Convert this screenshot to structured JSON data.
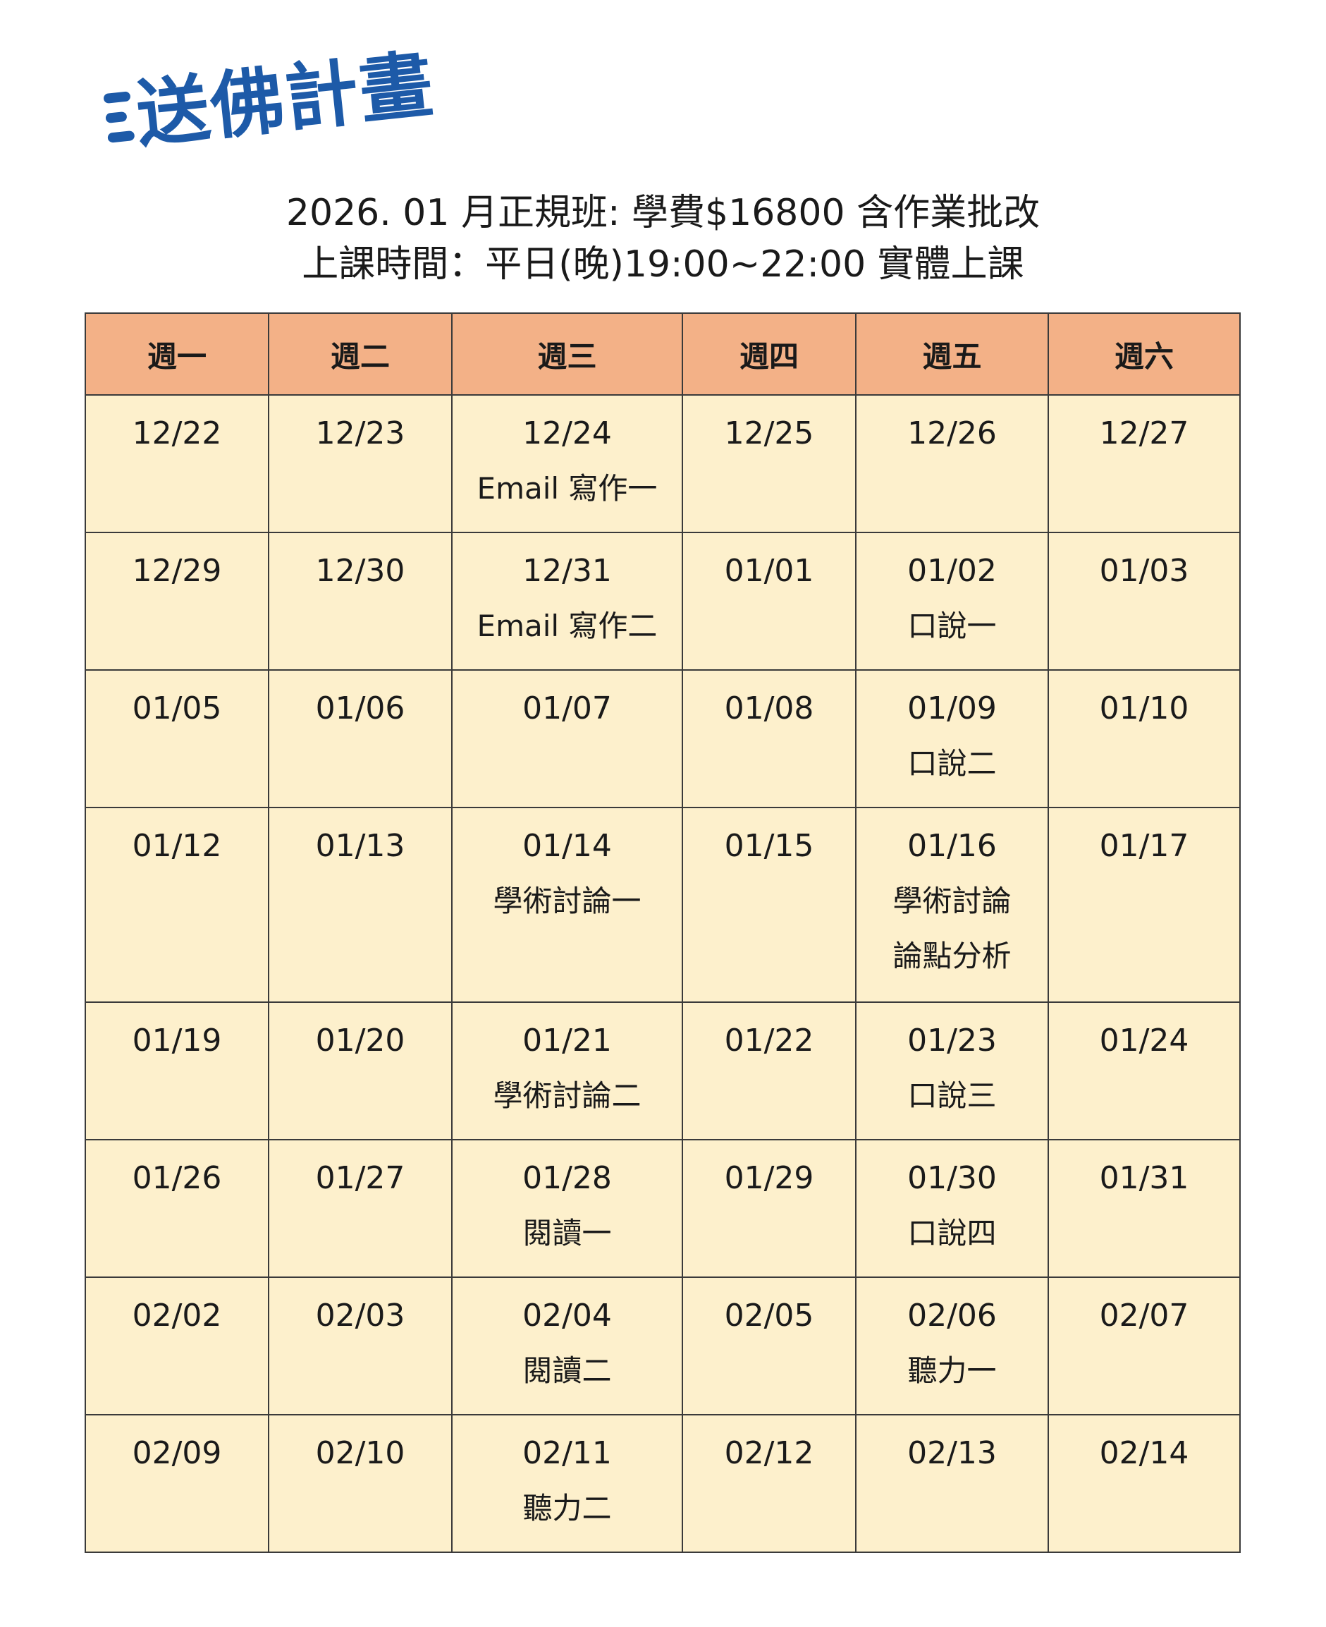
{
  "logo": {
    "text": "送佛計畫",
    "color": "#1d5aa8"
  },
  "header": {
    "line1": "2026. 01 月正規班: 學費$16800 含作業批改",
    "line2": "上課時間：平日(晚)19:00~22:00 實體上課"
  },
  "colors": {
    "header_bg": "#f3b187",
    "cell_bg": "#fdf0cc",
    "border": "#3a3a3a"
  },
  "schedule": {
    "days": [
      "週一",
      "週二",
      "週三",
      "週四",
      "週五",
      "週六"
    ],
    "weeks": [
      [
        {
          "date": "12/22",
          "events": []
        },
        {
          "date": "12/23",
          "events": []
        },
        {
          "date": "12/24",
          "events": [
            "Email 寫作一"
          ]
        },
        {
          "date": "12/25",
          "events": []
        },
        {
          "date": "12/26",
          "events": []
        },
        {
          "date": "12/27",
          "events": []
        }
      ],
      [
        {
          "date": "12/29",
          "events": []
        },
        {
          "date": "12/30",
          "events": []
        },
        {
          "date": "12/31",
          "events": [
            "Email 寫作二"
          ]
        },
        {
          "date": "01/01",
          "events": []
        },
        {
          "date": "01/02",
          "events": [
            "口說一"
          ]
        },
        {
          "date": "01/03",
          "events": []
        }
      ],
      [
        {
          "date": "01/05",
          "events": []
        },
        {
          "date": "01/06",
          "events": []
        },
        {
          "date": "01/07",
          "events": []
        },
        {
          "date": "01/08",
          "events": []
        },
        {
          "date": "01/09",
          "events": [
            "口說二"
          ]
        },
        {
          "date": "01/10",
          "events": []
        }
      ],
      [
        {
          "date": "01/12",
          "events": []
        },
        {
          "date": "01/13",
          "events": []
        },
        {
          "date": "01/14",
          "events": [
            "學術討論一"
          ]
        },
        {
          "date": "01/15",
          "events": []
        },
        {
          "date": "01/16",
          "events": [
            "學術討論",
            "論點分析"
          ]
        },
        {
          "date": "01/17",
          "events": []
        }
      ],
      [
        {
          "date": "01/19",
          "events": []
        },
        {
          "date": "01/20",
          "events": []
        },
        {
          "date": "01/21",
          "events": [
            "學術討論二"
          ]
        },
        {
          "date": "01/22",
          "events": []
        },
        {
          "date": "01/23",
          "events": [
            "口說三"
          ]
        },
        {
          "date": "01/24",
          "events": []
        }
      ],
      [
        {
          "date": "01/26",
          "events": []
        },
        {
          "date": "01/27",
          "events": []
        },
        {
          "date": "01/28",
          "events": [
            "閱讀一"
          ]
        },
        {
          "date": "01/29",
          "events": []
        },
        {
          "date": "01/30",
          "events": [
            "口說四"
          ]
        },
        {
          "date": "01/31",
          "events": []
        }
      ],
      [
        {
          "date": "02/02",
          "events": []
        },
        {
          "date": "02/03",
          "events": []
        },
        {
          "date": "02/04",
          "events": [
            "閱讀二"
          ]
        },
        {
          "date": "02/05",
          "events": []
        },
        {
          "date": "02/06",
          "events": [
            "聽力一"
          ]
        },
        {
          "date": "02/07",
          "events": []
        }
      ],
      [
        {
          "date": "02/09",
          "events": []
        },
        {
          "date": "02/10",
          "events": []
        },
        {
          "date": "02/11",
          "events": [
            "聽力二"
          ]
        },
        {
          "date": "02/12",
          "events": []
        },
        {
          "date": "02/13",
          "events": []
        },
        {
          "date": "02/14",
          "events": []
        }
      ]
    ]
  }
}
